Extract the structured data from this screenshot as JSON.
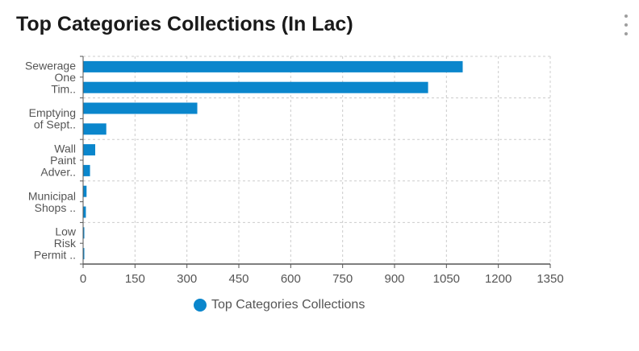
{
  "card": {
    "title": "Top Categories Collections (In Lac)",
    "menu_icon": "kebab-menu-icon"
  },
  "colors": {
    "bar": "#0a86cc",
    "grid": "#cccccc",
    "axis": "#555555",
    "text": "#555555"
  },
  "chart_data": {
    "type": "bar",
    "orientation": "horizontal",
    "title": "Top Categories Collections (In Lac)",
    "xlim": [
      0,
      1350
    ],
    "xticks": [
      0,
      150,
      300,
      450,
      600,
      750,
      900,
      1050,
      1200,
      1350
    ],
    "grid": true,
    "legend_position": "bottom",
    "bar_values": [
      1097,
      997,
      330,
      67,
      35,
      20,
      10,
      8,
      3,
      2
    ],
    "category_labels": [
      {
        "lines": [
          "Sewerage",
          "One",
          "Tim.."
        ],
        "anchor": 1
      },
      {
        "lines": [
          "Emptying",
          "of Sept.."
        ],
        "anchor": 3
      },
      {
        "lines": [
          "Wall",
          "Paint",
          "Adver.."
        ],
        "anchor": 5
      },
      {
        "lines": [
          "Municipal",
          "Shops .."
        ],
        "anchor": 7
      },
      {
        "lines": [
          "Low",
          "Risk",
          "Permit .."
        ],
        "anchor": 9
      }
    ],
    "series": [
      {
        "name": "Top Categories Collections"
      }
    ]
  }
}
